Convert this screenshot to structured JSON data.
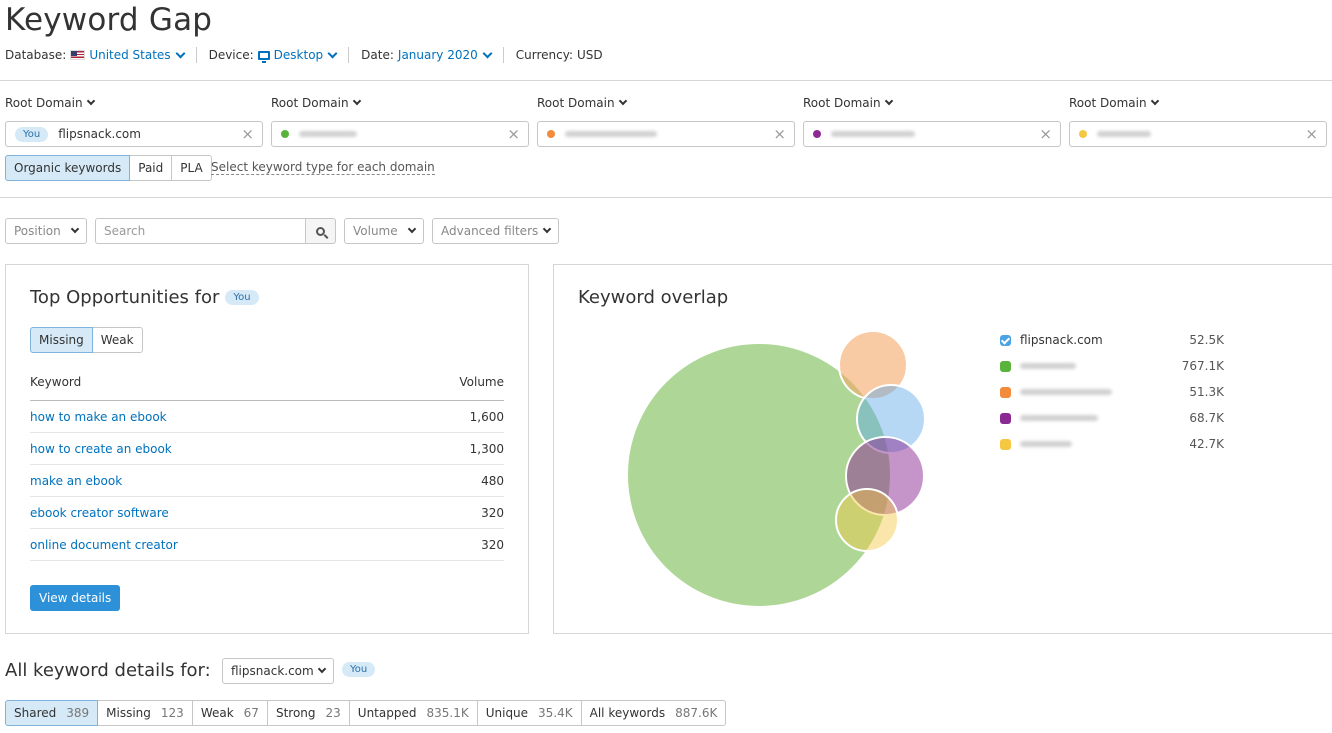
{
  "page": {
    "title": "Keyword Gap"
  },
  "meta": {
    "database_label": "Database:",
    "database_value": "United States",
    "device_label": "Device:",
    "device_value": "Desktop",
    "date_label": "Date:",
    "date_value": "January 2020",
    "currency_label": "Currency:",
    "currency_value": "USD"
  },
  "domains": [
    {
      "label": "Root Domain",
      "badge": "You",
      "value": "flipsnack.com",
      "color": ""
    },
    {
      "label": "Root Domain",
      "value": "",
      "color": "#5ab43c"
    },
    {
      "label": "Root Domain",
      "value": "",
      "color": "#f28c3c"
    },
    {
      "label": "Root Domain",
      "value": "",
      "color": "#8c2a94"
    },
    {
      "label": "Root Domain",
      "value": "",
      "color": "#f5c842"
    }
  ],
  "keyword_type": {
    "options": [
      "Organic keywords",
      "Paid",
      "PLA"
    ],
    "selected": "Organic keywords",
    "hint": "Select keyword type for each domain"
  },
  "filters": {
    "position": "Position",
    "search_placeholder": "Search",
    "volume": "Volume",
    "advanced": "Advanced filters"
  },
  "opportunities": {
    "title": "Top Opportunities for",
    "badge": "You",
    "tabs": [
      "Missing",
      "Weak"
    ],
    "active_tab": "Missing",
    "col_keyword": "Keyword",
    "col_volume": "Volume",
    "rows": [
      {
        "keyword": "how to make an ebook",
        "volume": "1,600"
      },
      {
        "keyword": "how to create an ebook",
        "volume": "1,300"
      },
      {
        "keyword": "make an ebook",
        "volume": "480"
      },
      {
        "keyword": "ebook creator software",
        "volume": "320"
      },
      {
        "keyword": "online document creator",
        "volume": "320"
      }
    ],
    "button": "View details"
  },
  "overlap": {
    "title": "Keyword overlap",
    "legend": [
      {
        "name": "flipsnack.com",
        "count": "52.5K",
        "color": "#4ba3e3",
        "checked": true
      },
      {
        "name": "",
        "count": "767.1K",
        "color": "#5ab43c"
      },
      {
        "name": "",
        "count": "51.3K",
        "color": "#f28c3c"
      },
      {
        "name": "",
        "count": "68.7K",
        "color": "#8c2a94"
      },
      {
        "name": "",
        "count": "42.7K",
        "color": "#f5c842"
      }
    ]
  },
  "details": {
    "title": "All keyword details for:",
    "domain": "flipsnack.com",
    "badge": "You",
    "tabs": [
      {
        "label": "Shared",
        "count": "389"
      },
      {
        "label": "Missing",
        "count": "123"
      },
      {
        "label": "Weak",
        "count": "67"
      },
      {
        "label": "Strong",
        "count": "23"
      },
      {
        "label": "Untapped",
        "count": "835.1K"
      },
      {
        "label": "Unique",
        "count": "35.4K"
      },
      {
        "label": "All keywords",
        "count": "887.6K"
      }
    ],
    "active_tab": "Shared"
  }
}
